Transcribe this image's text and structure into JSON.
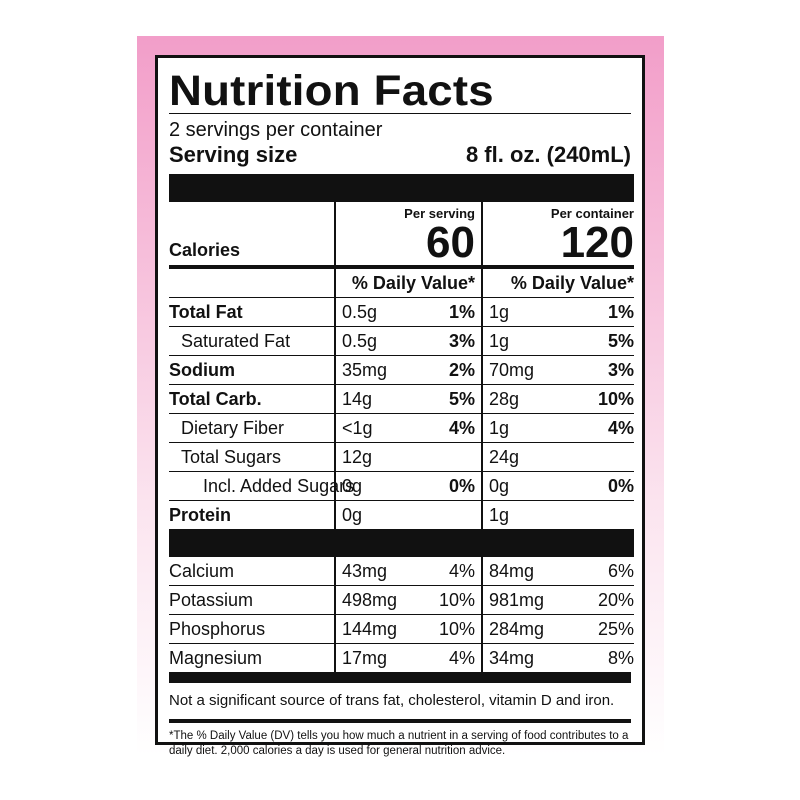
{
  "title": "Nutrition Facts",
  "servings_per_container": "2 servings per container",
  "serving_size_label": "Serving size",
  "serving_size_value": "8 fl. oz. (240mL)",
  "calories": {
    "label": "Calories",
    "per_serving_label": "Per serving",
    "per_serving_value": "60",
    "per_container_label": "Per container",
    "per_container_value": "120"
  },
  "daily_value_header": "% Daily Value*",
  "nutrients": [
    {
      "name": "Total Fat",
      "serving_amount": "0.5g",
      "serving_dv": "1%",
      "container_amount": "1g",
      "container_dv": "1%"
    },
    {
      "name": "Saturated Fat",
      "serving_amount": "0.5g",
      "serving_dv": "3%",
      "container_amount": "1g",
      "container_dv": "5%"
    },
    {
      "name": "Sodium",
      "serving_amount": "35mg",
      "serving_dv": "2%",
      "container_amount": "70mg",
      "container_dv": "3%"
    },
    {
      "name": "Total Carb.",
      "serving_amount": "14g",
      "serving_dv": "5%",
      "container_amount": "28g",
      "container_dv": "10%"
    },
    {
      "name": "Dietary Fiber",
      "serving_amount": "<1g",
      "serving_dv": "4%",
      "container_amount": "1g",
      "container_dv": "4%"
    },
    {
      "name": "Total Sugars",
      "serving_amount": "12g",
      "serving_dv": "",
      "container_amount": "24g",
      "container_dv": ""
    },
    {
      "name": "Incl. Added Sugars",
      "serving_amount": "0g",
      "serving_dv": "0%",
      "container_amount": "0g",
      "container_dv": "0%"
    },
    {
      "name": "Protein",
      "serving_amount": "0g",
      "serving_dv": "",
      "container_amount": "1g",
      "container_dv": ""
    }
  ],
  "minerals": [
    {
      "name": "Calcium",
      "serving_amount": "43mg",
      "serving_dv": "4%",
      "container_amount": "84mg",
      "container_dv": "6%"
    },
    {
      "name": "Potassium",
      "serving_amount": "498mg",
      "serving_dv": "10%",
      "container_amount": "981mg",
      "container_dv": "20%"
    },
    {
      "name": "Phosphorus",
      "serving_amount": "144mg",
      "serving_dv": "10%",
      "container_amount": "284mg",
      "container_dv": "25%"
    },
    {
      "name": "Magnesium",
      "serving_amount": "17mg",
      "serving_dv": "4%",
      "container_amount": "34mg",
      "container_dv": "8%"
    }
  ],
  "footnote_not_significant": "Not a significant source of trans fat, cholesterol, vitamin D and iron.",
  "footnote_daily_value": "*The % Daily Value (DV) tells you how much a nutrient in a serving of food contributes to a daily diet. 2,000 calories a day is used for general nutrition advice.",
  "colors": {
    "band_top": "#f29ec9",
    "band_bottom": "#ffffff",
    "ink": "#111111"
  }
}
